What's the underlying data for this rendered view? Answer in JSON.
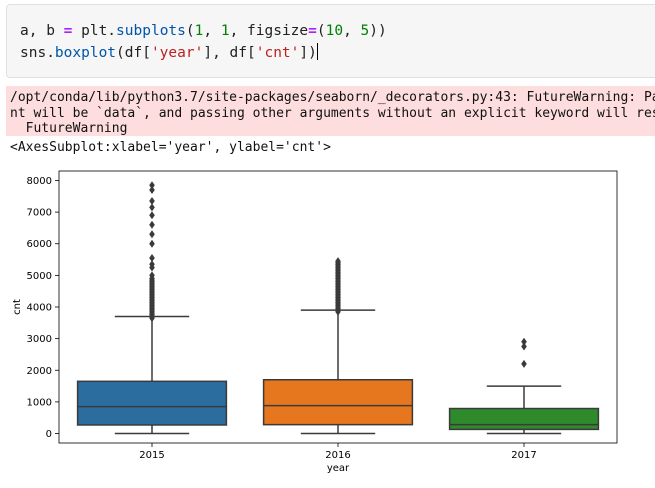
{
  "code_cell": {
    "line1": {
      "a": "a, b ",
      "eq": "=",
      "b": " plt.",
      "fn": "subplots",
      "c": "(",
      "n1": "1",
      "d": ", ",
      "n2": "1",
      "e": ", figsize",
      "eq2": "=",
      "f": "(",
      "n3": "10",
      "g": ", ",
      "n4": "5",
      "h": "))"
    },
    "line2": {
      "a": "sns.",
      "fn": "boxplot",
      "b": "(df[",
      "s1": "'year'",
      "c": "], df[",
      "s2": "'cnt'",
      "d": "])"
    }
  },
  "stderr": {
    "line1": "/opt/conda/lib/python3.7/site-packages/seaborn/_decorators.py:43: FutureWarning: Pa",
    "line2": "nt will be `data`, and passing other arguments without an explicit keyword will res",
    "line3": "  FutureWarning"
  },
  "output_text": "<AxesSubplot:xlabel='year', ylabel='cnt'>",
  "chart_data": {
    "type": "box",
    "xlabel": "year",
    "ylabel": "cnt",
    "ylim": [
      -300,
      8300
    ],
    "yticks": [
      0,
      1000,
      2000,
      3000,
      4000,
      5000,
      6000,
      7000,
      8000
    ],
    "categories": [
      "2015",
      "2016",
      "2017"
    ],
    "colors": [
      "#2c6da0",
      "#e6771f",
      "#2f8a2c"
    ],
    "boxes": [
      {
        "category": "2015",
        "min": 0,
        "q1": 270,
        "median": 850,
        "q3": 1650,
        "max": 3700,
        "outliers": [
          3650,
          3700,
          3750,
          3800,
          3850,
          3900,
          3950,
          4000,
          4050,
          4100,
          4150,
          4200,
          4250,
          4300,
          4350,
          4400,
          4450,
          4500,
          4550,
          4600,
          4650,
          4700,
          4750,
          4800,
          4850,
          4900,
          5000,
          5250,
          5350,
          5550,
          6000,
          6300,
          6600,
          6900,
          7150,
          7350,
          7700,
          7850
        ]
      },
      {
        "category": "2016",
        "min": 0,
        "q1": 280,
        "median": 880,
        "q3": 1700,
        "max": 3900,
        "outliers": [
          3850,
          3900,
          3950,
          4000,
          4050,
          4100,
          4150,
          4200,
          4250,
          4300,
          4350,
          4400,
          4450,
          4500,
          4550,
          4600,
          4650,
          4700,
          4750,
          4800,
          4850,
          4900,
          4950,
          5000,
          5050,
          5100,
          5150,
          5200,
          5250,
          5300,
          5350,
          5400,
          5450
        ]
      },
      {
        "category": "2017",
        "min": 0,
        "q1": 130,
        "median": 280,
        "q3": 790,
        "max": 1500,
        "outliers": [
          2200,
          2750,
          2900
        ]
      }
    ]
  }
}
